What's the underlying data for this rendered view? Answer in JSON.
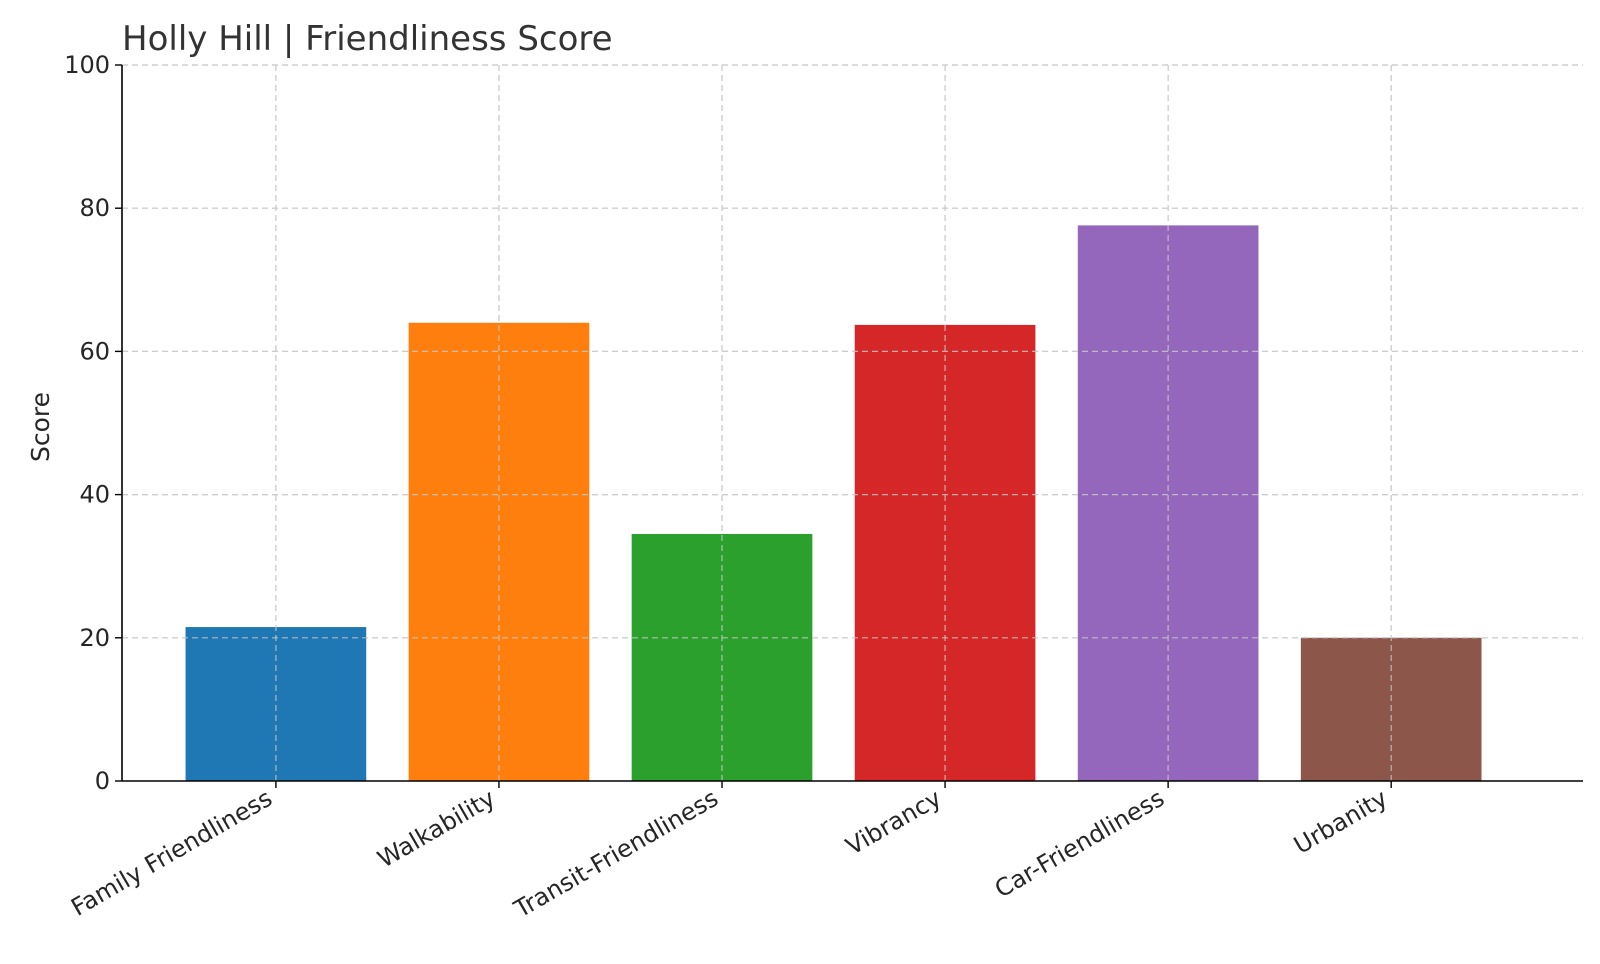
{
  "chart_data": {
    "type": "bar",
    "title": "Holly Hill |  Friendliness Score",
    "xlabel": "",
    "ylabel": "Score",
    "ylim": [
      0,
      100
    ],
    "yticks": [
      0,
      20,
      40,
      60,
      80,
      100
    ],
    "grid": true,
    "categories": [
      "Family Friendliness",
      "Walkability",
      "Transit-Friendliness",
      "Vibrancy",
      "Car-Friendliness",
      "Urbanity"
    ],
    "values": [
      21.5,
      64,
      34.5,
      63.7,
      77.6,
      20
    ],
    "colors": [
      "#1f77b4",
      "#ff7f0e",
      "#2ca02c",
      "#d62728",
      "#9467bd",
      "#8c564b"
    ]
  }
}
